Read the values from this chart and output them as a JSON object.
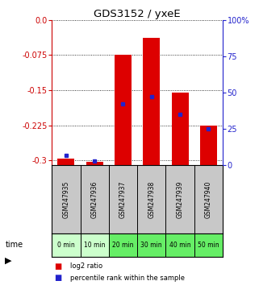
{
  "title": "GDS3152 / yxeE",
  "samples": [
    "GSM247935",
    "GSM247936",
    "GSM247937",
    "GSM247938",
    "GSM247939",
    "GSM247940"
  ],
  "times": [
    "0 min",
    "10 min",
    "20 min",
    "30 min",
    "40 min",
    "50 min"
  ],
  "log2_ratio": [
    -0.295,
    -0.302,
    -0.075,
    -0.038,
    -0.155,
    -0.225
  ],
  "percentile_rank": [
    7,
    3,
    42,
    47,
    35,
    25
  ],
  "ylim_left": [
    -0.31,
    0.0
  ],
  "ylim_right": [
    0,
    100
  ],
  "yticks_left": [
    0.0,
    -0.075,
    -0.15,
    -0.225,
    -0.3
  ],
  "yticks_right": [
    0,
    25,
    50,
    75,
    100
  ],
  "bar_color": "#dd0000",
  "dot_color": "#2222cc",
  "left_tick_color": "#cc0000",
  "right_tick_color": "#2222cc",
  "bg_color": "#ffffff",
  "sample_bg": "#c8c8c8",
  "time_bg_light": "#ccffcc",
  "time_bg_dark": "#66ee66",
  "time_light_indices": [
    0,
    1
  ],
  "legend_red": "log2 ratio",
  "legend_blue": "percentile rank within the sample"
}
